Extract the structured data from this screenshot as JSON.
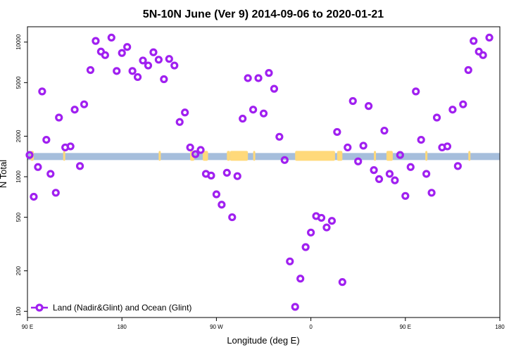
{
  "chart_data": {
    "type": "scatter",
    "title": "5N-10N June (Ver 9)   2014-09-06 to 2020-01-21",
    "xlabel": "Longitude (deg E)",
    "ylabel": "N Total",
    "x_scale": "longitude, centered on 0, spans 90 E to 180 then 180 back past 0 to 180",
    "y_scale": "log",
    "xlim_label_range": [
      "90 E",
      "180"
    ],
    "ylim": [
      90,
      13000
    ],
    "x_ticks": [
      {
        "pos": 90,
        "label": "90 E"
      },
      {
        "pos": 180,
        "label": "180"
      },
      {
        "pos": 270,
        "label": "90 W"
      },
      {
        "pos": 360,
        "label": "0"
      },
      {
        "pos": 450,
        "label": "90 E"
      },
      {
        "pos": 540,
        "label": "180"
      }
    ],
    "y_ticks": [
      {
        "value": 100,
        "label": "100"
      },
      {
        "value": 200,
        "label": "200"
      },
      {
        "value": 500,
        "label": "500"
      },
      {
        "value": 1000,
        "label": "1000"
      },
      {
        "value": 2000,
        "label": "2000"
      },
      {
        "value": 5000,
        "label": "5000"
      },
      {
        "value": 10000,
        "label": "10000"
      }
    ],
    "background_band": {
      "description": "latitude strip map: ocean blue with land (yellow) patches",
      "ocean_color": "#a6bedc",
      "land_color": "#ffd97a",
      "y_range": [
        1330,
        1500
      ],
      "land_segments_x": [
        [
          93,
          96
        ],
        [
          124,
          126
        ],
        [
          215,
          217
        ],
        [
          245,
          249
        ],
        [
          257,
          262
        ],
        [
          280,
          283
        ],
        [
          283,
          300
        ],
        [
          305,
          307
        ],
        [
          345,
          383
        ],
        [
          385,
          390
        ],
        [
          420,
          422
        ],
        [
          432,
          438
        ],
        [
          469,
          471
        ],
        [
          510,
          512
        ]
      ]
    },
    "series": [
      {
        "name": "Land (Nadir&Glint) and Ocean (Glint)",
        "color": "#a020f0",
        "marker": "open-circle",
        "points": [
          {
            "x": 92,
            "y": 1450
          },
          {
            "x": 96,
            "y": 710
          },
          {
            "x": 100,
            "y": 1180
          },
          {
            "x": 104,
            "y": 4300
          },
          {
            "x": 108,
            "y": 1880
          },
          {
            "x": 112,
            "y": 1050
          },
          {
            "x": 117,
            "y": 760
          },
          {
            "x": 120,
            "y": 2750
          },
          {
            "x": 126,
            "y": 1650
          },
          {
            "x": 131,
            "y": 1680
          },
          {
            "x": 135,
            "y": 3150
          },
          {
            "x": 140,
            "y": 1200
          },
          {
            "x": 144,
            "y": 3450
          },
          {
            "x": 150,
            "y": 6200
          },
          {
            "x": 155,
            "y": 10200
          },
          {
            "x": 160,
            "y": 8500
          },
          {
            "x": 164,
            "y": 8000
          },
          {
            "x": 170,
            "y": 10800
          },
          {
            "x": 175,
            "y": 6100
          },
          {
            "x": 180,
            "y": 8300
          },
          {
            "x": 185,
            "y": 9200
          },
          {
            "x": 190,
            "y": 6100
          },
          {
            "x": 195,
            "y": 5500
          },
          {
            "x": 200,
            "y": 7300
          },
          {
            "x": 205,
            "y": 6700
          },
          {
            "x": 210,
            "y": 8400
          },
          {
            "x": 215,
            "y": 7400
          },
          {
            "x": 220,
            "y": 5300
          },
          {
            "x": 225,
            "y": 7500
          },
          {
            "x": 230,
            "y": 6700
          },
          {
            "x": 235,
            "y": 2550
          },
          {
            "x": 240,
            "y": 3000
          },
          {
            "x": 245,
            "y": 1650
          },
          {
            "x": 250,
            "y": 1470
          },
          {
            "x": 255,
            "y": 1580
          },
          {
            "x": 260,
            "y": 1050
          },
          {
            "x": 265,
            "y": 1020
          },
          {
            "x": 270,
            "y": 740
          },
          {
            "x": 275,
            "y": 620
          },
          {
            "x": 280,
            "y": 1070
          },
          {
            "x": 285,
            "y": 500
          },
          {
            "x": 290,
            "y": 1010
          },
          {
            "x": 295,
            "y": 2700
          },
          {
            "x": 300,
            "y": 5400
          },
          {
            "x": 305,
            "y": 3150
          },
          {
            "x": 310,
            "y": 5400
          },
          {
            "x": 315,
            "y": 2950
          },
          {
            "x": 320,
            "y": 5900
          },
          {
            "x": 325,
            "y": 4500
          },
          {
            "x": 330,
            "y": 1980
          },
          {
            "x": 335,
            "y": 1330
          },
          {
            "x": 340,
            "y": 235
          },
          {
            "x": 345,
            "y": 108
          },
          {
            "x": 350,
            "y": 175
          },
          {
            "x": 355,
            "y": 300
          },
          {
            "x": 360,
            "y": 385
          },
          {
            "x": 365,
            "y": 510
          },
          {
            "x": 370,
            "y": 495
          },
          {
            "x": 375,
            "y": 420
          },
          {
            "x": 380,
            "y": 470
          },
          {
            "x": 385,
            "y": 2150
          },
          {
            "x": 390,
            "y": 165
          },
          {
            "x": 395,
            "y": 1650
          },
          {
            "x": 400,
            "y": 3650
          },
          {
            "x": 405,
            "y": 1300
          },
          {
            "x": 410,
            "y": 1700
          },
          {
            "x": 415,
            "y": 3350
          },
          {
            "x": 420,
            "y": 1120
          },
          {
            "x": 425,
            "y": 960
          },
          {
            "x": 430,
            "y": 2200
          },
          {
            "x": 435,
            "y": 1050
          },
          {
            "x": 440,
            "y": 940
          },
          {
            "x": 445,
            "y": 1450
          },
          {
            "x": 450,
            "y": 720
          },
          {
            "x": 455,
            "y": 1180
          },
          {
            "x": 460,
            "y": 4300
          },
          {
            "x": 465,
            "y": 1880
          },
          {
            "x": 470,
            "y": 1050
          },
          {
            "x": 475,
            "y": 760
          },
          {
            "x": 480,
            "y": 2750
          },
          {
            "x": 485,
            "y": 1650
          },
          {
            "x": 490,
            "y": 1680
          },
          {
            "x": 495,
            "y": 3150
          },
          {
            "x": 500,
            "y": 1200
          },
          {
            "x": 505,
            "y": 3450
          },
          {
            "x": 510,
            "y": 6200
          },
          {
            "x": 515,
            "y": 10200
          },
          {
            "x": 520,
            "y": 8500
          },
          {
            "x": 524,
            "y": 8000
          },
          {
            "x": 530,
            "y": 10800
          }
        ]
      }
    ],
    "legend": {
      "placement": "bottom-left",
      "entries": [
        "Land (Nadir&Glint) and Ocean (Glint)"
      ]
    },
    "grid": false
  }
}
